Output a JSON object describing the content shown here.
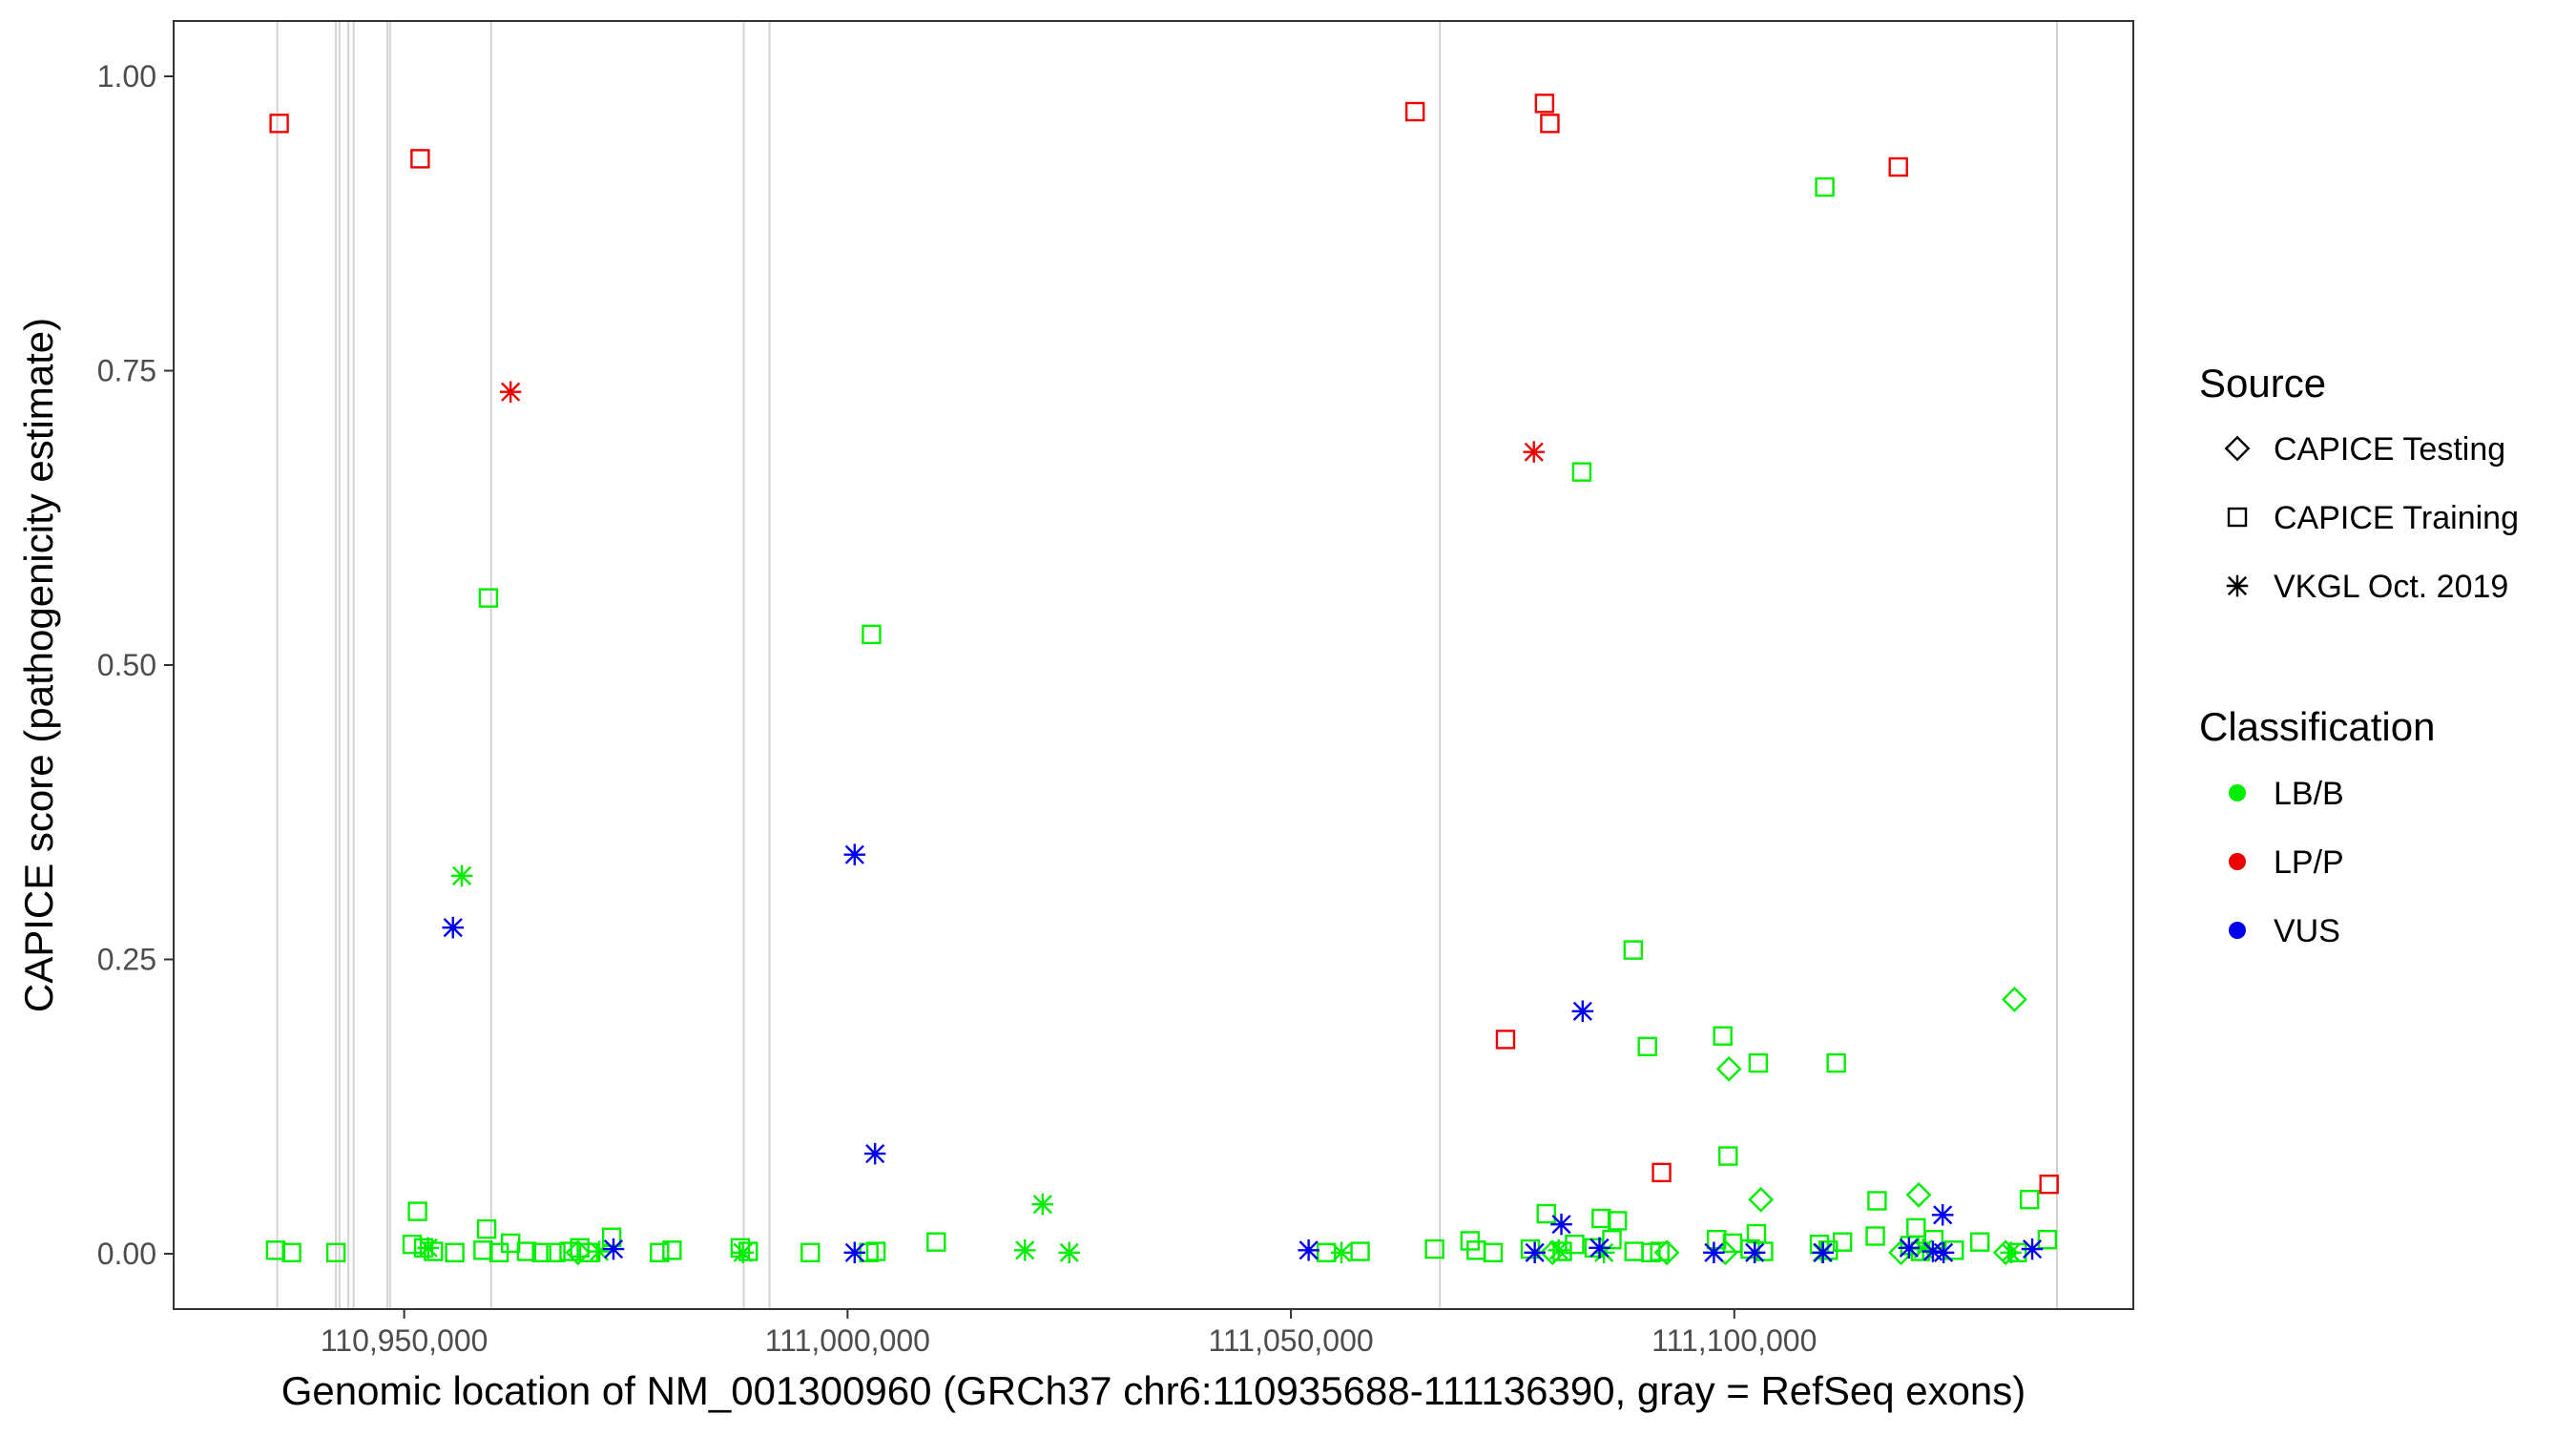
{
  "chart_data": {
    "type": "scatter",
    "xlabel": "Genomic location of NM_001300960 (GRCh37 chr6:110935688-111136390, gray = RefSeq exons)",
    "ylabel": "CAPICE score (pathogenicity estimate)",
    "xlim": [
      110924000,
      111145000
    ],
    "ylim": [
      -0.047,
      1.047
    ],
    "x_ticks": [
      110950000,
      111000000,
      111050000,
      111100000
    ],
    "x_tick_labels": [
      "110,950,000",
      "111,000,000",
      "111,050,000",
      "111,100,000"
    ],
    "y_ticks": [
      0,
      0.25,
      0.5,
      0.75,
      1.0
    ],
    "y_tick_labels": [
      "0.00",
      "0.25",
      "0.50",
      "0.75",
      "1.00"
    ],
    "grid": false,
    "exons": [
      110935688,
      110942300,
      110942700,
      110943700,
      110944300,
      110948100,
      110948400,
      110959800,
      110988300,
      110991200,
      111066800,
      111136390
    ],
    "legend_placement": "right",
    "legend": {
      "source_title": "Source",
      "source_items": [
        {
          "label": "CAPICE Testing",
          "shape": "diamond"
        },
        {
          "label": "CAPICE Training",
          "shape": "square"
        },
        {
          "label": "VKGL Oct. 2019",
          "shape": "asterisk"
        }
      ],
      "class_title": "Classification",
      "class_items": [
        {
          "label": "LB/B",
          "color": "#00ee00"
        },
        {
          "label": "LP/P",
          "color": "#ee0000"
        },
        {
          "label": "VUS",
          "color": "#0000ee"
        }
      ]
    },
    "colors": {
      "LB/B": "#00ee00",
      "LP/P": "#ee0000",
      "VUS": "#0000ee"
    },
    "series": [
      {
        "source": "CAPICE Training",
        "classification": "LP/P",
        "points": [
          [
            110935900,
            0.96
          ],
          [
            110951800,
            0.93
          ],
          [
            111064000,
            0.97
          ],
          [
            111078600,
            0.977
          ],
          [
            111079200,
            0.96
          ],
          [
            111118500,
            0.923
          ],
          [
            111074200,
            0.182
          ],
          [
            111091800,
            0.069
          ],
          [
            111135500,
            0.059
          ]
        ]
      },
      {
        "source": "CAPICE Training",
        "classification": "LB/B",
        "points": [
          [
            110959500,
            0.557
          ],
          [
            111002700,
            0.526
          ],
          [
            111082800,
            0.664
          ],
          [
            111110200,
            0.906
          ],
          [
            111088600,
            0.258
          ],
          [
            111090200,
            0.176
          ],
          [
            111098700,
            0.185
          ],
          [
            111102700,
            0.162
          ],
          [
            111111500,
            0.162
          ],
          [
            111099300,
            0.083
          ],
          [
            111078800,
            0.034
          ],
          [
            111085000,
            0.03
          ],
          [
            111086800,
            0.028
          ],
          [
            111116100,
            0.045
          ],
          [
            111133300,
            0.046
          ],
          [
            110951500,
            0.036
          ],
          [
            110959300,
            0.021
          ],
          [
            111102500,
            0.017
          ],
          [
            111120500,
            0.022
          ],
          [
            110973400,
            0.014
          ],
          [
            111010000,
            0.01
          ],
          [
            111070200,
            0.011
          ],
          [
            111098000,
            0.012
          ],
          [
            110935500,
            0.003
          ],
          [
            110937300,
            0.001
          ],
          [
            110942300,
            0.001
          ],
          [
            110950900,
            0.008
          ],
          [
            110952200,
            0.005
          ],
          [
            110953300,
            0.002
          ],
          [
            110955700,
            0.001
          ],
          [
            110958900,
            0.003
          ],
          [
            110960700,
            0.001
          ],
          [
            110962000,
            0.009
          ],
          [
            110963800,
            0.002
          ],
          [
            110965500,
            0.001
          ],
          [
            110967100,
            0.001
          ],
          [
            110968600,
            0.002
          ],
          [
            110969800,
            0.005
          ],
          [
            110970800,
            0.001
          ],
          [
            110978800,
            0.001
          ],
          [
            110980200,
            0.003
          ],
          [
            110987900,
            0.005
          ],
          [
            110988800,
            0.002
          ],
          [
            110995800,
            0.001
          ],
          [
            111002400,
            0.001
          ],
          [
            111003200,
            0.002
          ],
          [
            111054000,
            0.001
          ],
          [
            111057800,
            0.002
          ],
          [
            111066200,
            0.004
          ],
          [
            111070900,
            0.003
          ],
          [
            111072800,
            0.001
          ],
          [
            111077000,
            0.004
          ],
          [
            111080600,
            0.002
          ],
          [
            111082000,
            0.008
          ],
          [
            111084200,
            0.005
          ],
          [
            111086200,
            0.012
          ],
          [
            111088700,
            0.002
          ],
          [
            111090600,
            0.001
          ],
          [
            111091600,
            0.002
          ],
          [
            111099800,
            0.009
          ],
          [
            111101800,
            0.004
          ],
          [
            111103300,
            0.002
          ],
          [
            111109600,
            0.008
          ],
          [
            111110600,
            0.003
          ],
          [
            111112200,
            0.01
          ],
          [
            111115900,
            0.015
          ],
          [
            111119800,
            0.007
          ],
          [
            111121000,
            0.002
          ],
          [
            111122500,
            0.012
          ],
          [
            111124800,
            0.003
          ],
          [
            111127700,
            0.01
          ],
          [
            111131900,
            0.001
          ],
          [
            111135300,
            0.012
          ]
        ]
      },
      {
        "source": "CAPICE Testing",
        "classification": "LB/B",
        "points": [
          [
            111131600,
            0.216
          ],
          [
            111099400,
            0.157
          ],
          [
            111103000,
            0.046
          ],
          [
            111120800,
            0.05
          ],
          [
            110969600,
            0.001
          ],
          [
            111079500,
            0.001
          ],
          [
            111092400,
            0.001
          ],
          [
            111099000,
            0.001
          ],
          [
            111118800,
            0.001
          ],
          [
            111130600,
            0.001
          ]
        ]
      },
      {
        "source": "VKGL Oct. 2019",
        "classification": "LP/P",
        "points": [
          [
            110962000,
            0.732
          ],
          [
            111077400,
            0.681
          ]
        ]
      },
      {
        "source": "VKGL Oct. 2019",
        "classification": "LB/B",
        "points": [
          [
            110956500,
            0.321
          ],
          [
            111022000,
            0.042
          ],
          [
            111020000,
            0.003
          ],
          [
            111025000,
            0.001
          ],
          [
            110952700,
            0.005
          ],
          [
            110972000,
            0.002
          ],
          [
            110988200,
            0.001
          ],
          [
            111055700,
            0.001
          ],
          [
            111080200,
            0.003
          ],
          [
            111085300,
            0.001
          ],
          [
            111109900,
            0.001
          ],
          [
            111121300,
            0.004
          ],
          [
            111131200,
            0.001
          ]
        ]
      },
      {
        "source": "VKGL Oct. 2019",
        "classification": "VUS",
        "points": [
          [
            110955500,
            0.277
          ],
          [
            111000800,
            0.339
          ],
          [
            111003100,
            0.085
          ],
          [
            111082900,
            0.206
          ],
          [
            111080500,
            0.025
          ],
          [
            111123500,
            0.033
          ],
          [
            110973600,
            0.004
          ],
          [
            111000800,
            0.001
          ],
          [
            111052000,
            0.003
          ],
          [
            111077500,
            0.001
          ],
          [
            111084800,
            0.005
          ],
          [
            111097700,
            0.001
          ],
          [
            111102300,
            0.001
          ],
          [
            111110000,
            0.001
          ],
          [
            111119700,
            0.005
          ],
          [
            111122400,
            0.002
          ],
          [
            111123600,
            0.001
          ],
          [
            111133600,
            0.004
          ]
        ]
      }
    ]
  }
}
